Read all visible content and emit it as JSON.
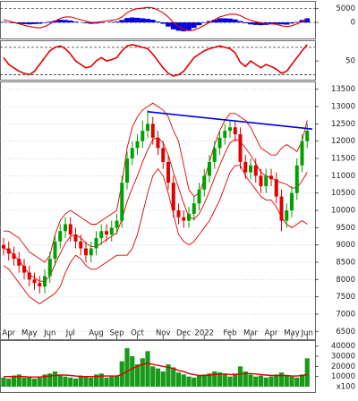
{
  "chart_data": [
    {
      "type": "macd",
      "ylim": [
        -5500,
        7500
      ],
      "yticks": [
        0,
        5000
      ],
      "line_color": "#e00000",
      "hist_color": "#0000e0",
      "macd": [
        1000,
        500,
        0,
        -500,
        -1000,
        -1500,
        -1800,
        -2000,
        -1500,
        -500,
        500,
        1500,
        2000,
        2000,
        1500,
        1000,
        500,
        0,
        0,
        300,
        500,
        800,
        1000,
        2000,
        3500,
        4500,
        5000,
        5200,
        5500,
        5300,
        4500,
        3500,
        2000,
        0,
        -1500,
        -2500,
        -3000,
        -2800,
        -2000,
        -1000,
        0,
        1000,
        2000,
        2500,
        3000,
        3000,
        2500,
        1500,
        800,
        300,
        -200,
        -500,
        -500,
        -700,
        -1200,
        -1500,
        -1200,
        -500,
        300,
        1000
      ],
      "histogram": [
        200,
        -100,
        -300,
        -500,
        -600,
        -700,
        -600,
        -500,
        -200,
        300,
        700,
        1000,
        900,
        700,
        300,
        0,
        -300,
        -500,
        -400,
        -200,
        0,
        200,
        300,
        900,
        1600,
        1800,
        1700,
        1500,
        1300,
        1000,
        300,
        -500,
        -1500,
        -2500,
        -3000,
        -3200,
        -2800,
        -2000,
        -1000,
        -200,
        500,
        1000,
        1500,
        1500,
        1400,
        1100,
        500,
        -300,
        -700,
        -900,
        -1000,
        -900,
        -700,
        -600,
        -700,
        -800,
        -400,
        200,
        900,
        1500
      ]
    },
    {
      "type": "line",
      "ylim": [
        24,
        79
      ],
      "yticks": [
        50
      ],
      "levels": [
        30,
        70
      ],
      "color": "#e00000",
      "values": [
        55,
        45,
        40,
        35,
        32,
        30,
        35,
        45,
        55,
        65,
        70,
        72,
        68,
        60,
        50,
        45,
        40,
        42,
        50,
        55,
        50,
        52,
        55,
        65,
        72,
        74,
        72,
        70,
        68,
        60,
        50,
        40,
        32,
        28,
        30,
        35,
        45,
        55,
        60,
        65,
        68,
        70,
        72,
        70,
        68,
        62,
        48,
        42,
        50,
        45,
        40,
        45,
        42,
        38,
        32,
        35,
        45,
        55,
        65,
        74
      ]
    },
    {
      "type": "candlestick",
      "ylim": [
        6300,
        13700
      ],
      "yticks": [
        6500,
        7000,
        7500,
        8000,
        8500,
        9000,
        9500,
        10000,
        10500,
        11000,
        11500,
        12000,
        12500,
        13000,
        13500
      ],
      "grid": true,
      "up_color": "#00a000",
      "down_color": "#e00000",
      "band_color": "#e00000",
      "categories": [
        null,
        "Apr",
        null,
        null,
        null,
        "May",
        null,
        null,
        null,
        "Jun",
        null,
        null,
        null,
        "Jul",
        null,
        null,
        null,
        null,
        "Aug",
        null,
        null,
        null,
        "Sep",
        null,
        null,
        null,
        "Oct",
        null,
        null,
        null,
        null,
        "Nov",
        null,
        null,
        null,
        "Dec",
        null,
        null,
        null,
        "2022",
        null,
        null,
        null,
        null,
        "Feb",
        null,
        null,
        null,
        "Mar",
        null,
        null,
        null,
        "Apr",
        null,
        null,
        null,
        "May",
        null,
        null,
        "Jun"
      ],
      "open": [
        9000,
        8900,
        8750,
        8600,
        8400,
        8200,
        8000,
        7900,
        7800,
        8100,
        8600,
        9100,
        9400,
        9600,
        9300,
        9100,
        8900,
        8700,
        8900,
        9200,
        9400,
        9300,
        9500,
        9700,
        10800,
        11500,
        11800,
        12000,
        12300,
        12500,
        12100,
        11800,
        11400,
        10800,
        10000,
        9800,
        9700,
        9900,
        10200,
        10600,
        11000,
        11400,
        11800,
        12100,
        12300,
        12400,
        12200,
        11400,
        11100,
        11300,
        11000,
        10700,
        11000,
        10900,
        10400,
        9700,
        10000,
        10500,
        11300,
        12000
      ],
      "high": [
        9200,
        9100,
        8950,
        8800,
        8600,
        8400,
        8200,
        8100,
        8300,
        8800,
        9300,
        9600,
        9800,
        9800,
        9500,
        9300,
        9100,
        9100,
        9400,
        9600,
        9600,
        9700,
        9900,
        11000,
        11700,
        12000,
        12200,
        12600,
        12900,
        12700,
        12300,
        12000,
        11600,
        11000,
        10200,
        10000,
        10100,
        10400,
        10800,
        11200,
        11600,
        12000,
        12300,
        12500,
        12600,
        12600,
        12400,
        11600,
        11500,
        11500,
        11200,
        11200,
        11200,
        11100,
        10600,
        10200,
        10700,
        11500,
        12200,
        12500
      ],
      "low": [
        8700,
        8550,
        8400,
        8200,
        8000,
        7800,
        7700,
        7600,
        7600,
        7900,
        8400,
        8900,
        9200,
        9100,
        8900,
        8700,
        8500,
        8500,
        8700,
        9000,
        9100,
        9100,
        9300,
        9500,
        10600,
        11300,
        11600,
        11800,
        12100,
        11900,
        11600,
        11200,
        10600,
        9800,
        9600,
        9500,
        9500,
        9700,
        10000,
        10400,
        10800,
        11200,
        11600,
        11900,
        12100,
        12000,
        11200,
        10900,
        10900,
        10800,
        10500,
        10500,
        10700,
        10200,
        9400,
        9500,
        9800,
        10300,
        11100,
        11800
      ],
      "close": [
        8900,
        8750,
        8600,
        8400,
        8200,
        8000,
        7900,
        7800,
        8100,
        8600,
        9100,
        9400,
        9600,
        9300,
        9100,
        8900,
        8700,
        8900,
        9200,
        9400,
        9300,
        9500,
        9700,
        10800,
        11500,
        11800,
        12000,
        12300,
        12500,
        12100,
        11800,
        11400,
        10800,
        10000,
        9800,
        9700,
        9900,
        10200,
        10600,
        11000,
        11400,
        11800,
        12100,
        12300,
        12400,
        12200,
        11400,
        11100,
        11300,
        11000,
        10700,
        11000,
        10900,
        10400,
        9700,
        10000,
        10500,
        11300,
        12000,
        12300
      ],
      "bands": [
        {
          "values": [
            9400,
            9400,
            9300,
            9200,
            9000,
            8800,
            8700,
            8600,
            8500,
            8700,
            9300,
            9700,
            9900,
            10000,
            9900,
            9800,
            9700,
            9600,
            9600,
            9700,
            9800,
            9900,
            10000,
            10800,
            11800,
            12400,
            12700,
            12900,
            13000,
            13100,
            13000,
            12900,
            12700,
            12300,
            12000,
            11300,
            10600,
            10400,
            10500,
            10900,
            11400,
            11900,
            12300,
            12600,
            12800,
            12800,
            12700,
            12600,
            12400,
            12100,
            11800,
            11700,
            11600,
            11600,
            11800,
            11900,
            11800,
            11700,
            12000,
            12600
          ]
        },
        {
          "values": [
            8900,
            8850,
            8700,
            8550,
            8350,
            8150,
            8050,
            7950,
            7950,
            8100,
            8450,
            8750,
            9050,
            9250,
            9300,
            9200,
            9050,
            8950,
            8950,
            9050,
            9150,
            9250,
            9350,
            9750,
            10250,
            10650,
            11000,
            11400,
            11750,
            12050,
            12100,
            11950,
            11600,
            11100,
            10650,
            10200,
            9800,
            9750,
            9900,
            10200,
            10550,
            10950,
            11300,
            11650,
            11950,
            12050,
            12000,
            11800,
            11600,
            11350,
            11100,
            11000,
            10950,
            10850,
            10800,
            10750,
            10650,
            10650,
            10850,
            11100
          ]
        },
        {
          "values": [
            8400,
            8300,
            8100,
            7900,
            7700,
            7500,
            7400,
            7300,
            7400,
            7500,
            7600,
            7800,
            8200,
            8500,
            8700,
            8600,
            8400,
            8300,
            8300,
            8400,
            8500,
            8600,
            8700,
            8700,
            8700,
            8900,
            9300,
            9900,
            10500,
            11000,
            11200,
            11000,
            10500,
            9900,
            9300,
            9100,
            9000,
            9100,
            9300,
            9500,
            9700,
            10000,
            10300,
            10700,
            11100,
            11300,
            11300,
            11000,
            10800,
            10600,
            10400,
            10300,
            10300,
            10100,
            9800,
            9600,
            9500,
            9600,
            9700,
            9600
          ]
        }
      ],
      "trendline": {
        "color": "#0000e0",
        "x": [
          28,
          60
        ],
        "values": [
          12850,
          12350
        ]
      }
    },
    {
      "type": "bar",
      "ylim": [
        0,
        45000
      ],
      "yticks": [
        10000,
        20000,
        30000,
        40000
      ],
      "unit": "x100",
      "color": "#1a9a1a",
      "ma_color": "#e00000",
      "values": [
        9000,
        8000,
        11000,
        12000,
        9000,
        10000,
        8000,
        9000,
        12000,
        13000,
        15000,
        11000,
        10000,
        9000,
        8000,
        11000,
        10000,
        9000,
        12000,
        13000,
        9000,
        10000,
        11000,
        25000,
        38000,
        30000,
        22000,
        28000,
        35000,
        20000,
        18000,
        15000,
        22000,
        19000,
        14000,
        12000,
        10000,
        9000,
        11000,
        12000,
        13000,
        15000,
        14000,
        12000,
        10000,
        13000,
        20000,
        15000,
        12000,
        10000,
        11000,
        9000,
        10000,
        12000,
        14000,
        11000,
        10000,
        9000,
        12000,
        28000
      ],
      "ma": [
        10000,
        10000,
        10000,
        10000,
        10000,
        9500,
        9500,
        9500,
        10000,
        10500,
        11000,
        11500,
        11500,
        11000,
        10500,
        10000,
        10000,
        10000,
        10000,
        10500,
        10500,
        10500,
        10500,
        12000,
        15000,
        18000,
        20000,
        22000,
        23000,
        22000,
        21000,
        20000,
        19000,
        18000,
        16000,
        15000,
        13000,
        12000,
        11000,
        11000,
        11500,
        12000,
        12500,
        12500,
        12000,
        12000,
        12500,
        13000,
        13000,
        12500,
        12000,
        11500,
        11000,
        11000,
        11000,
        11000,
        10500,
        10500,
        11000,
        12000
      ]
    }
  ]
}
